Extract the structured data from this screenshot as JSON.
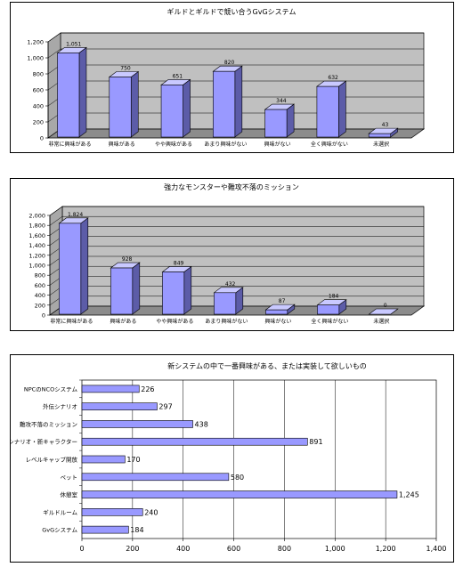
{
  "colors": {
    "bar_front": "#9999ff",
    "bar_side": "#5c5ca8",
    "bar_top": "#c9c9ff",
    "wall": "#c0c0c0",
    "floor": "#8c8c8c"
  },
  "chart_data": [
    {
      "type": "bar",
      "title": "ギルドとギルドで競い合うGvGシステム",
      "categories": [
        "非常に興味がある",
        "興味がある",
        "やや興味がある",
        "あまり興味がない",
        "興味がない",
        "全く興味がない",
        "未選択"
      ],
      "values": [
        1051,
        750,
        651,
        820,
        344,
        632,
        43
      ],
      "value_labels": [
        "1,051",
        "750",
        "651",
        "820",
        "344",
        "632",
        "43"
      ],
      "yticks": [
        "0",
        "200",
        "400",
        "600",
        "800",
        "1,000",
        "1,200"
      ],
      "ylim": [
        0,
        1200
      ],
      "grid": true
    },
    {
      "type": "bar",
      "title": "強力なモンスターや難攻不落のミッション",
      "categories": [
        "非常に興味がある",
        "興味がある",
        "やや興味がある",
        "あまり興味がない",
        "興味がない",
        "全く興味がない",
        "未選択"
      ],
      "values": [
        1824,
        928,
        849,
        432,
        87,
        184,
        0
      ],
      "value_labels": [
        "1,824",
        "928",
        "849",
        "432",
        "87",
        "184",
        "0"
      ],
      "yticks": [
        "0",
        "200",
        "400",
        "600",
        "800",
        "1,000",
        "1,200",
        "1,400",
        "1,600",
        "1,800",
        "2,000"
      ],
      "ylim": [
        0,
        2000
      ],
      "grid": true
    },
    {
      "type": "bar",
      "orientation": "horizontal",
      "title": "新システムの中で一番興味がある、または実装して欲しいもの",
      "categories": [
        "NPCのNCOシステム",
        "外伝シナリオ",
        "難攻不落のミッション",
        "新シナリオ・新キャラクター",
        "レベルキャップ開放",
        "ペット",
        "休憩室",
        "ギルドルーム",
        "GvGシステム"
      ],
      "values": [
        226,
        297,
        438,
        891,
        170,
        580,
        1245,
        240,
        184
      ],
      "value_labels": [
        "226",
        "297",
        "438",
        "891",
        "170",
        "580",
        "1,245",
        "240",
        "184"
      ],
      "xticks": [
        "0",
        "200",
        "400",
        "600",
        "800",
        "1,000",
        "1,200",
        "1,400"
      ],
      "xlim": [
        0,
        1400
      ],
      "grid": true
    }
  ]
}
